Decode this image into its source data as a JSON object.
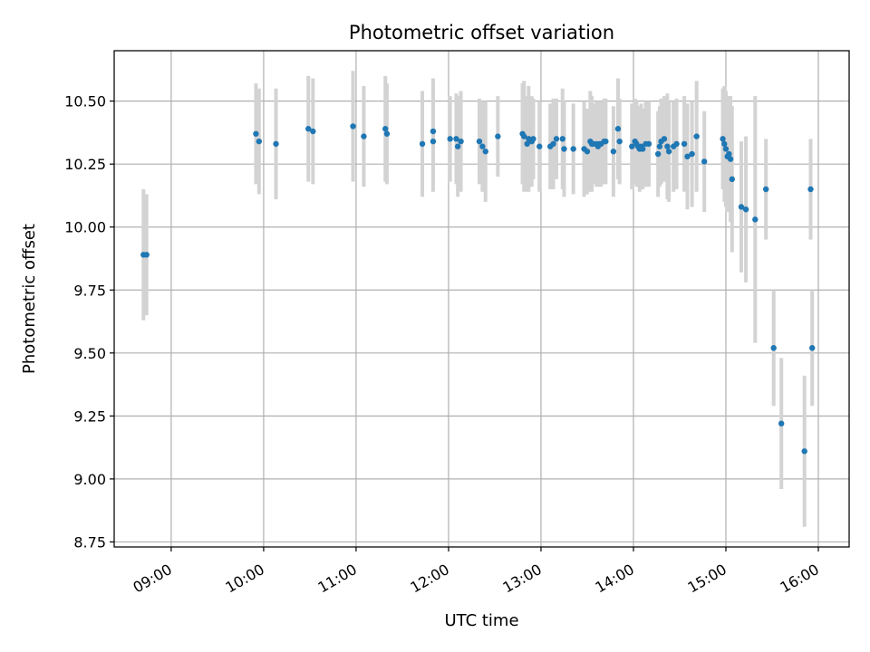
{
  "chart_data": {
    "type": "scatter",
    "title": "Photometric offset variation",
    "xlabel": "UTC time",
    "ylabel": "Photometric offset",
    "xlim": [
      "08:23",
      "16:20"
    ],
    "ylim": [
      8.73,
      10.7
    ],
    "grid": true,
    "x_ticks": [
      "09:00",
      "10:00",
      "11:00",
      "12:00",
      "13:00",
      "14:00",
      "15:00",
      "16:00"
    ],
    "y_ticks": [
      "8.75",
      "9.00",
      "9.25",
      "9.50",
      "9.75",
      "10.00",
      "10.25",
      "10.50"
    ],
    "colors": {
      "point": "#1f77b4",
      "errorbar": "#d3d3d3",
      "grid": "#b0b0b0"
    },
    "series": [
      {
        "x": [
          "08:42",
          "08:44",
          "09:55",
          "09:57",
          "10:08",
          "10:29",
          "10:32",
          "10:58",
          "11:05",
          "11:19",
          "11:20",
          "11:43",
          "11:50",
          "11:50",
          "12:01",
          "12:05",
          "12:06",
          "12:08",
          "12:20",
          "12:22",
          "12:24",
          "12:32",
          "12:48",
          "12:49",
          "12:51",
          "12:52",
          "12:54",
          "12:55",
          "12:59",
          "13:06",
          "13:08",
          "13:10",
          "13:14",
          "13:15",
          "13:21",
          "13:28",
          "13:30",
          "13:32",
          "13:33",
          "13:34",
          "13:36",
          "13:37",
          "13:38",
          "13:39",
          "13:41",
          "13:42",
          "13:47",
          "13:50",
          "13:51",
          "13:59",
          "14:01",
          "14:02",
          "14:03",
          "14:04",
          "14:05",
          "14:06",
          "14:08",
          "14:10",
          "14:16",
          "14:17",
          "14:18",
          "14:20",
          "14:22",
          "14:23",
          "14:26",
          "14:28",
          "14:33",
          "14:35",
          "14:38",
          "14:41",
          "14:46",
          "14:58",
          "14:59",
          "15:00",
          "15:01",
          "15:02",
          "15:03",
          "15:04",
          "15:10",
          "15:13",
          "15:19",
          "15:26",
          "15:31",
          "15:36",
          "15:51",
          "15:55",
          "15:56"
        ],
        "y": [
          9.89,
          9.89,
          10.37,
          10.34,
          10.33,
          10.39,
          10.38,
          10.4,
          10.36,
          10.39,
          10.37,
          10.33,
          10.38,
          10.34,
          10.35,
          10.35,
          10.32,
          10.34,
          10.34,
          10.32,
          10.3,
          10.36,
          10.37,
          10.36,
          10.33,
          10.35,
          10.34,
          10.35,
          10.32,
          10.32,
          10.33,
          10.35,
          10.35,
          10.31,
          10.31,
          10.31,
          10.3,
          10.34,
          10.33,
          10.33,
          10.33,
          10.32,
          10.33,
          10.33,
          10.34,
          10.34,
          10.3,
          10.39,
          10.34,
          10.32,
          10.34,
          10.33,
          10.32,
          10.31,
          10.32,
          10.31,
          10.33,
          10.33,
          10.29,
          10.32,
          10.34,
          10.35,
          10.32,
          10.3,
          10.32,
          10.33,
          10.33,
          10.28,
          10.29,
          10.36,
          10.26,
          10.35,
          10.33,
          10.31,
          10.28,
          10.29,
          10.27,
          10.19,
          10.08,
          10.07,
          10.03,
          10.15,
          9.52,
          9.22,
          9.11,
          10.15,
          9.52
        ],
        "err": [
          0.26,
          0.24,
          0.2,
          0.21,
          0.22,
          0.21,
          0.21,
          0.22,
          0.2,
          0.21,
          0.2,
          0.21,
          0.21,
          0.2,
          0.17,
          0.18,
          0.2,
          0.2,
          0.17,
          0.18,
          0.2,
          0.16,
          0.2,
          0.22,
          0.19,
          0.21,
          0.18,
          0.16,
          0.18,
          0.17,
          0.18,
          0.16,
          0.2,
          0.19,
          0.18,
          0.19,
          0.17,
          0.2,
          0.19,
          0.16,
          0.17,
          0.16,
          0.17,
          0.17,
          0.17,
          0.17,
          0.18,
          0.2,
          0.17,
          0.17,
          0.17,
          0.17,
          0.16,
          0.17,
          0.17,
          0.16,
          0.17,
          0.17,
          0.17,
          0.16,
          0.17,
          0.17,
          0.21,
          0.2,
          0.18,
          0.18,
          0.19,
          0.21,
          0.21,
          0.22,
          0.2,
          0.2,
          0.23,
          0.23,
          0.22,
          0.23,
          0.25,
          0.29,
          0.26,
          0.29,
          0.49,
          0.2,
          0.23,
          0.26,
          0.3,
          0.2,
          0.23
        ]
      }
    ]
  }
}
